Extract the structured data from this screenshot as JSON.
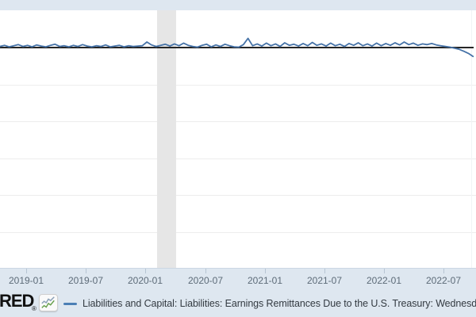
{
  "footer": {
    "logo_text": "RED",
    "logo_reg": "®",
    "legend_label": "Liabilities and Capital: Liabilities: Earnings Remittances Due to the U.S. Treasury: Wednesda"
  },
  "colors": {
    "series_line": "#4572a7",
    "zero_line": "#262626",
    "band_background": "#dee7f0",
    "recession_band": "#e6e6e6",
    "gridline": "#ededed",
    "tick_label": "#5d6b78",
    "legend_dash": "#4b7fb5",
    "logo_icon_green": "#67a04c",
    "logo_icon_gray": "#8ba1b8"
  },
  "chart_data": {
    "type": "line",
    "title": "",
    "xlabel": "",
    "ylabel": "",
    "legend": [
      "Liabilities and Capital: Liabilities: Earnings Remittances Due to the U.S. Treasury: Wednesda"
    ],
    "grid": "horizontal",
    "y_axis": {
      "labels_visible": false,
      "zero_value": 0,
      "units_per_gridline": 10,
      "ylim": [
        -60,
        10
      ],
      "unit_hint": "billions of U.S. dollars (axis labels cropped out of view)"
    },
    "x_axis": {
      "tick_labels": [
        "2019-01",
        "2019-07",
        "2020-01",
        "2020-07",
        "2021-01",
        "2021-07",
        "2022-01",
        "2022-07"
      ],
      "tick_times": [
        2019.0,
        2019.5,
        2020.0,
        2020.5,
        2021.0,
        2021.5,
        2022.0,
        2022.5
      ],
      "xlim": [
        2018.78,
        2022.78
      ]
    },
    "recession_band": {
      "t_start": 2020.097,
      "t_end": 2020.257
    },
    "series": [
      {
        "name": "Liabilities and Capital: Liabilities: Earnings Remittances Due to the U.S. Treasury: Wednesda",
        "t0": 2018.78,
        "dt": 0.0385,
        "values": [
          0.3,
          0.6,
          0.2,
          0.5,
          0.8,
          0.3,
          0.6,
          0.2,
          0.7,
          0.4,
          0.2,
          0.6,
          0.9,
          0.3,
          0.5,
          0.2,
          0.6,
          0.3,
          0.8,
          0.4,
          0.2,
          0.5,
          0.3,
          0.7,
          0.2,
          0.4,
          0.6,
          0.2,
          0.5,
          0.3,
          0.4,
          0.5,
          1.5,
          0.7,
          0.3,
          0.6,
          0.9,
          0.4,
          1.0,
          0.5,
          1.2,
          0.6,
          0.3,
          0.1,
          0.6,
          0.9,
          0.2,
          0.7,
          0.3,
          0.9,
          0.5,
          0.2,
          0.1,
          0.8,
          2.5,
          0.5,
          1.0,
          0.4,
          1.2,
          0.5,
          1.0,
          0.3,
          1.3,
          0.6,
          0.9,
          0.4,
          1.1,
          0.5,
          1.4,
          0.6,
          1.0,
          0.4,
          1.2,
          0.5,
          0.9,
          0.3,
          1.1,
          0.6,
          1.3,
          0.5,
          1.0,
          0.4,
          1.2,
          0.5,
          1.1,
          0.6,
          1.3,
          0.7,
          1.5,
          0.8,
          1.2,
          0.6,
          1.0,
          0.8,
          1.1,
          0.7,
          0.5,
          0.3,
          0.1,
          -0.2,
          -0.5,
          -1.0,
          -1.6,
          -2.4
        ]
      }
    ]
  }
}
